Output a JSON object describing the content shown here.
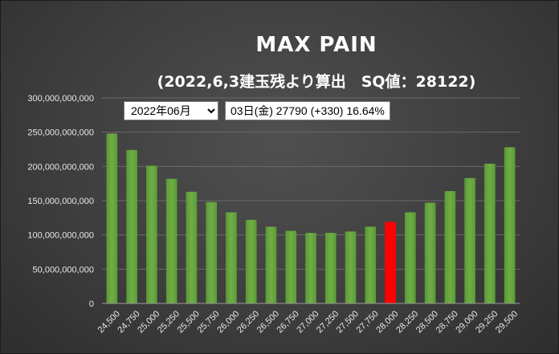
{
  "controls": {
    "month_options": [
      "2022年06月"
    ],
    "month_selected": "2022年06月",
    "info_text": "03日(金) 27790 (+330) 16.64%"
  },
  "colors": {
    "bar": "#70ad47",
    "highlight": "#ff0000"
  },
  "chart_data": {
    "type": "bar",
    "title": "MAX PAIN",
    "subtitle": "(2022,6,3建玉残より算出　SQ値：28122)",
    "xlabel": "",
    "ylabel": "",
    "ylim": [
      0,
      300000000000
    ],
    "yticks": [
      0,
      50000000000,
      100000000000,
      150000000000,
      200000000000,
      250000000000,
      300000000000
    ],
    "ytick_labels": [
      "0",
      "50,000,000,000",
      "100,000,000,000",
      "150,000,000,000",
      "200,000,000,000",
      "250,000,000,000",
      "300,000,000,000"
    ],
    "grid": true,
    "legend": "none",
    "categories": [
      "24,500",
      "24,750",
      "25,000",
      "25,250",
      "25,500",
      "25,750",
      "26,000",
      "26,250",
      "26,500",
      "26,750",
      "27,000",
      "27,250",
      "27,500",
      "27,750",
      "28,000",
      "28,250",
      "28,500",
      "28,750",
      "29,000",
      "29,250",
      "29,500"
    ],
    "values": [
      248000000000,
      224000000000,
      201000000000,
      182000000000,
      163000000000,
      148000000000,
      133000000000,
      122000000000,
      112000000000,
      106000000000,
      103000000000,
      103000000000,
      105000000000,
      112000000000,
      119000000000,
      133000000000,
      147000000000,
      164000000000,
      183000000000,
      204000000000,
      228000000000
    ],
    "highlight_category": "28,000"
  }
}
